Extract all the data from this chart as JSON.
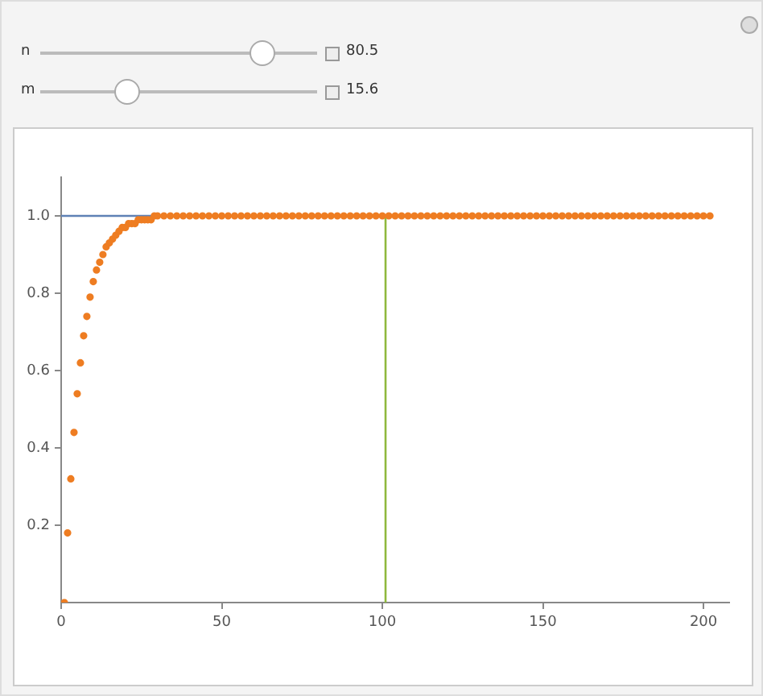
{
  "chart_data": {
    "type": "line",
    "annotations": [
      "n",
      "80.5",
      "m",
      "15.6"
    ],
    "xlim": [
      0,
      208
    ],
    "xticks": [
      0,
      50,
      100,
      150,
      200
    ],
    "ylim": [
      0,
      1.1
    ],
    "yticks": [
      0.2,
      0.4,
      0.6,
      0.8,
      {
        "value": 1,
        "label": "1.0"
      }
    ],
    "grid": false,
    "legend": false,
    "marker": "none",
    "series": [
      {
        "color": "#5e81b5",
        "x": [
          0,
          203
        ],
        "values": [
          1,
          1
        ]
      },
      {
        "color": "#8fb83e",
        "x": [
          101,
          101
        ],
        "values": [
          0,
          1
        ]
      },
      {
        "type": "scatter",
        "marker": "circle",
        "color": "#ee7d22",
        "x": [
          1,
          2,
          3,
          4,
          5,
          6,
          7,
          8,
          9,
          10,
          11,
          12,
          13,
          14,
          15,
          16,
          17,
          18,
          19,
          20,
          21,
          22,
          23,
          24,
          25,
          26,
          27,
          28,
          29,
          30,
          32,
          34,
          36,
          38,
          40,
          42,
          44,
          46,
          48,
          50,
          52,
          54,
          56,
          58,
          60,
          62,
          64,
          66,
          68,
          70,
          72,
          74,
          76,
          78,
          80,
          82,
          84,
          86,
          88,
          90,
          92,
          94,
          96,
          98,
          100,
          102,
          104,
          106,
          108,
          110,
          112,
          114,
          116,
          118,
          120,
          122,
          124,
          126,
          128,
          130,
          132,
          134,
          136,
          138,
          140,
          142,
          144,
          146,
          148,
          150,
          152,
          154,
          156,
          158,
          160,
          162,
          164,
          166,
          168,
          170,
          172,
          174,
          176,
          178,
          180,
          182,
          184,
          186,
          188,
          190,
          192,
          194,
          196,
          198,
          200,
          202
        ],
        "values": [
          0,
          0.18,
          0.32,
          0.44,
          0.54,
          0.62,
          0.69,
          0.74,
          0.79,
          0.83,
          0.86,
          0.88,
          0.9,
          0.92,
          0.93,
          0.94,
          0.95,
          0.96,
          0.97,
          0.97,
          0.98,
          0.98,
          0.98,
          0.99,
          0.99,
          0.99,
          0.99,
          0.99,
          1,
          1,
          1,
          1,
          1,
          1,
          1,
          1,
          1,
          1,
          1,
          1,
          1,
          1,
          1,
          1,
          1,
          1,
          1,
          1,
          1,
          1,
          1,
          1,
          1,
          1,
          1,
          1,
          1,
          1,
          1,
          1,
          1,
          1,
          1,
          1,
          1,
          1,
          1,
          1,
          1,
          1,
          1,
          1,
          1,
          1,
          1,
          1,
          1,
          1,
          1,
          1,
          1,
          1,
          1,
          1,
          1,
          1,
          1,
          1,
          1,
          1,
          1,
          1,
          1,
          1,
          1,
          1,
          1,
          1,
          1,
          1,
          1,
          1,
          1,
          1,
          1,
          1,
          1,
          1,
          1,
          1,
          1,
          1,
          1,
          1,
          1,
          1
        ]
      }
    ]
  }
}
